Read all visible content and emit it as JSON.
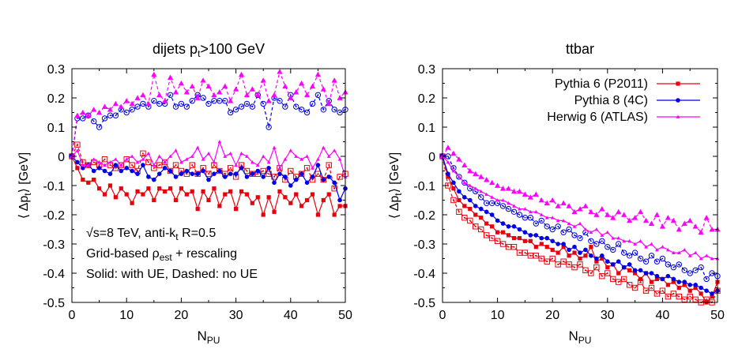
{
  "chart_data": [
    {
      "type": "line",
      "title": "dijets p",
      "title_sub": "t",
      "title_rest": ">100 GeV",
      "xlabel": "N",
      "xlabel_sub": "PU",
      "ylabel": "⟨ Δp",
      "ylabel_sub": "t",
      "ylabel_rest": "⟩ [GeV]",
      "xlim": [
        0,
        50
      ],
      "ylim": [
        -0.5,
        0.3
      ],
      "xticks": [
        "0",
        "10",
        "20",
        "30",
        "40",
        "50"
      ],
      "yticks": [
        "0.3",
        "0.2",
        "0.1",
        "0",
        "-0.1",
        "-0.2",
        "-0.3",
        "-0.4",
        "-0.5"
      ],
      "annotations": [
        {
          "text": "√s=8 TeV, anti-k",
          "sub": "t",
          "rest": " R=0.5"
        },
        {
          "text": "Grid-based ρ",
          "sub": "est",
          "rest": " + rescaling"
        },
        {
          "text": "Solid: with UE, Dashed: no UE",
          "sub": "",
          "rest": ""
        }
      ],
      "series": [
        {
          "name": "Pythia 6 (P2011)",
          "style": "solid",
          "marker": "filled-square",
          "color": "#e8000b",
          "values": [
            0,
            -0.04,
            -0.08,
            -0.09,
            -0.08,
            -0.11,
            -0.13,
            -0.1,
            -0.14,
            -0.11,
            -0.13,
            -0.16,
            -0.12,
            -0.13,
            -0.11,
            -0.15,
            -0.11,
            -0.12,
            -0.11,
            -0.15,
            -0.11,
            -0.13,
            -0.12,
            -0.18,
            -0.12,
            -0.15,
            -0.11,
            -0.17,
            -0.13,
            -0.12,
            -0.18,
            -0.12,
            -0.13,
            -0.16,
            -0.14,
            -0.2,
            -0.14,
            -0.19,
            -0.12,
            -0.14,
            -0.16,
            -0.13,
            -0.17,
            -0.15,
            -0.13,
            -0.2,
            -0.15,
            -0.13,
            -0.2,
            -0.17,
            -0.17
          ]
        },
        {
          "name": "Pythia 6 (P2011) no UE",
          "style": "dashed",
          "marker": "open-square",
          "color": "#e8000b",
          "values": [
            0,
            0.04,
            -0.02,
            -0.03,
            -0.02,
            -0.03,
            -0.01,
            -0.03,
            -0.04,
            -0.03,
            -0.01,
            -0.03,
            -0.05,
            0.01,
            -0.02,
            -0.04,
            -0.03,
            -0.02,
            -0.05,
            -0.03,
            -0.05,
            -0.06,
            -0.03,
            -0.06,
            -0.04,
            -0.06,
            -0.03,
            -0.05,
            -0.06,
            -0.04,
            -0.07,
            -0.03,
            -0.05,
            -0.06,
            -0.06,
            -0.05,
            -0.06,
            -0.07,
            -0.04,
            -0.08,
            -0.05,
            -0.07,
            -0.06,
            -0.04,
            -0.08,
            -0.06,
            -0.08,
            -0.03,
            -0.11,
            -0.07,
            -0.06
          ]
        },
        {
          "name": "Pythia 8 (4C)",
          "style": "solid",
          "marker": "filled-circle",
          "color": "#0000e6",
          "values": [
            0,
            -0.02,
            -0.04,
            -0.03,
            -0.05,
            -0.04,
            -0.05,
            -0.06,
            -0.03,
            -0.05,
            -0.04,
            -0.05,
            -0.06,
            -0.03,
            -0.07,
            -0.08,
            -0.06,
            -0.04,
            -0.05,
            -0.07,
            -0.06,
            -0.05,
            -0.06,
            -0.06,
            -0.05,
            -0.08,
            -0.06,
            -0.05,
            -0.07,
            -0.06,
            -0.06,
            -0.04,
            -0.07,
            -0.06,
            -0.05,
            -0.07,
            -0.04,
            -0.09,
            -0.06,
            -0.07,
            -0.1,
            -0.08,
            -0.06,
            -0.09,
            -0.07,
            -0.03,
            -0.08,
            -0.07,
            -0.09,
            -0.15,
            -0.11
          ]
        },
        {
          "name": "Pythia 8 (4C) no UE",
          "style": "dashed",
          "marker": "open-circle",
          "color": "#0000e6",
          "values": [
            0,
            0.13,
            0.13,
            0.14,
            0.12,
            0.1,
            0.13,
            0.14,
            0.14,
            0.16,
            0.15,
            0.16,
            0.17,
            0.18,
            0.17,
            0.19,
            0.18,
            0.18,
            0.21,
            0.17,
            0.18,
            0.17,
            0.19,
            0.21,
            0.2,
            0.18,
            0.19,
            0.19,
            0.19,
            0.15,
            0.16,
            0.17,
            0.18,
            0.17,
            0.21,
            0.18,
            0.1,
            0.2,
            0.19,
            0.17,
            0.21,
            0.17,
            0.16,
            0.15,
            0.18,
            0.21,
            0.16,
            0.19,
            0.16,
            0.15,
            0.16
          ]
        },
        {
          "name": "Herwig 6 (ATLAS)",
          "style": "solid",
          "marker": "small-triangle",
          "color": "#ff00ff",
          "values": [
            0,
            0.02,
            -0.03,
            -0.03,
            -0.01,
            -0.02,
            -0.03,
            -0.02,
            -0.01,
            -0.03,
            -0.01,
            0.0,
            -0.02,
            -0.01,
            0.01,
            -0.03,
            0.0,
            -0.02,
            0.0,
            0.02,
            -0.02,
            -0.01,
            0.0,
            0.03,
            -0.01,
            0.01,
            -0.02,
            0.05,
            0.0,
            0.01,
            -0.03,
            0.01,
            0.0,
            -0.02,
            -0.03,
            0.0,
            -0.02,
            0.03,
            -0.04,
            -0.01,
            0.02,
            0.0,
            -0.01,
            0.0,
            -0.04,
            -0.01,
            0.03,
            0.0,
            0.02,
            -0.01,
            -0.07
          ]
        },
        {
          "name": "Herwig 6 (ATLAS) no UE",
          "style": "dashed",
          "marker": "triangle",
          "color": "#ff00ff",
          "values": [
            0,
            0.14,
            0.15,
            0.14,
            0.16,
            0.15,
            0.17,
            0.16,
            0.18,
            0.17,
            0.19,
            0.18,
            0.2,
            0.21,
            0.18,
            0.28,
            0.21,
            0.19,
            0.27,
            0.22,
            0.25,
            0.22,
            0.24,
            0.2,
            0.26,
            0.24,
            0.21,
            0.22,
            0.24,
            0.19,
            0.23,
            0.28,
            0.21,
            0.23,
            0.21,
            0.26,
            0.19,
            0.21,
            0.29,
            0.24,
            0.2,
            0.22,
            0.25,
            0.21,
            0.24,
            0.28,
            0.23,
            0.18,
            0.26,
            0.2,
            0.22
          ]
        }
      ]
    },
    {
      "type": "line",
      "title": "ttbar",
      "xlabel": "N",
      "xlabel_sub": "PU",
      "ylabel": "⟨ Δp",
      "ylabel_sub": "t",
      "ylabel_rest": "⟩ [GeV]",
      "xlim": [
        0,
        50
      ],
      "ylim": [
        -0.5,
        0.3
      ],
      "xticks": [
        "0",
        "10",
        "20",
        "30",
        "40",
        "50"
      ],
      "yticks": [
        "0.3",
        "0.2",
        "0.1",
        "0",
        "-0.1",
        "-0.2",
        "-0.3",
        "-0.4",
        "-0.5"
      ],
      "legend_placement": "top-right",
      "legend": [
        {
          "label": "Pythia 6 (P2011)",
          "marker": "filled-square",
          "color": "#e8000b"
        },
        {
          "label": "Pythia 8 (4C)",
          "marker": "filled-circle",
          "color": "#0000e6"
        },
        {
          "label": "Herwig 6 (ATLAS)",
          "marker": "small-triangle",
          "color": "#ff00ff"
        }
      ],
      "series": [
        {
          "name": "Pythia 6 (P2011)",
          "style": "solid",
          "marker": "filled-square",
          "color": "#e8000b",
          "values": [
            0,
            -0.07,
            -0.11,
            -0.15,
            -0.17,
            -0.18,
            -0.2,
            -0.21,
            -0.23,
            -0.24,
            -0.26,
            -0.26,
            -0.27,
            -0.28,
            -0.28,
            -0.29,
            -0.29,
            -0.31,
            -0.3,
            -0.31,
            -0.32,
            -0.33,
            -0.31,
            -0.34,
            -0.33,
            -0.35,
            -0.34,
            -0.31,
            -0.36,
            -0.35,
            -0.38,
            -0.37,
            -0.4,
            -0.38,
            -0.39,
            -0.4,
            -0.42,
            -0.4,
            -0.43,
            -0.42,
            -0.42,
            -0.44,
            -0.43,
            -0.45,
            -0.44,
            -0.46,
            -0.45,
            -0.47,
            -0.5,
            -0.48,
            -0.43
          ]
        },
        {
          "name": "Pythia 6 (P2011) no UE",
          "style": "dashed",
          "marker": "open-square",
          "color": "#e8000b",
          "values": [
            0,
            -0.1,
            -0.15,
            -0.19,
            -0.21,
            -0.22,
            -0.24,
            -0.25,
            -0.27,
            -0.28,
            -0.29,
            -0.3,
            -0.31,
            -0.31,
            -0.33,
            -0.33,
            -0.34,
            -0.34,
            -0.35,
            -0.36,
            -0.35,
            -0.37,
            -0.36,
            -0.37,
            -0.38,
            -0.37,
            -0.39,
            -0.4,
            -0.38,
            -0.41,
            -0.4,
            -0.42,
            -0.43,
            -0.42,
            -0.44,
            -0.45,
            -0.43,
            -0.46,
            -0.45,
            -0.47,
            -0.46,
            -0.48,
            -0.47,
            -0.48,
            -0.49,
            -0.48,
            -0.49,
            -0.5,
            -0.49,
            -0.5,
            -0.46
          ]
        },
        {
          "name": "Pythia 8 (4C)",
          "style": "solid",
          "marker": "filled-circle",
          "color": "#0000e6",
          "values": [
            0,
            -0.06,
            -0.09,
            -0.12,
            -0.14,
            -0.15,
            -0.17,
            -0.18,
            -0.19,
            -0.2,
            -0.22,
            -0.23,
            -0.24,
            -0.24,
            -0.25,
            -0.26,
            -0.27,
            -0.27,
            -0.28,
            -0.28,
            -0.29,
            -0.3,
            -0.3,
            -0.32,
            -0.31,
            -0.33,
            -0.32,
            -0.34,
            -0.35,
            -0.34,
            -0.36,
            -0.37,
            -0.36,
            -0.38,
            -0.37,
            -0.39,
            -0.39,
            -0.4,
            -0.4,
            -0.41,
            -0.42,
            -0.41,
            -0.42,
            -0.43,
            -0.43,
            -0.44,
            -0.44,
            -0.45,
            -0.46,
            -0.47,
            -0.46
          ]
        },
        {
          "name": "Pythia 8 (4C) no UE",
          "style": "dashed",
          "marker": "open-circle",
          "color": "#0000e6",
          "values": [
            0,
            0.0,
            -0.04,
            -0.07,
            -0.09,
            -0.11,
            -0.12,
            -0.14,
            -0.16,
            -0.16,
            -0.16,
            -0.17,
            -0.18,
            -0.19,
            -0.2,
            -0.21,
            -0.21,
            -0.23,
            -0.22,
            -0.24,
            -0.25,
            -0.24,
            -0.26,
            -0.25,
            -0.27,
            -0.28,
            -0.26,
            -0.29,
            -0.3,
            -0.29,
            -0.31,
            -0.32,
            -0.3,
            -0.33,
            -0.34,
            -0.33,
            -0.35,
            -0.36,
            -0.34,
            -0.36,
            -0.35,
            -0.37,
            -0.38,
            -0.37,
            -0.39,
            -0.4,
            -0.39,
            -0.38,
            -0.42,
            -0.4,
            -0.41
          ]
        },
        {
          "name": "Herwig 6 (ATLAS)",
          "style": "solid",
          "marker": "small-triangle",
          "color": "#ff00ff",
          "values": [
            0,
            -0.02,
            -0.05,
            -0.07,
            -0.09,
            -0.1,
            -0.11,
            -0.12,
            -0.13,
            -0.14,
            -0.15,
            -0.15,
            -0.16,
            -0.17,
            -0.18,
            -0.18,
            -0.19,
            -0.19,
            -0.2,
            -0.21,
            -0.21,
            -0.22,
            -0.22,
            -0.23,
            -0.24,
            -0.23,
            -0.25,
            -0.26,
            -0.25,
            -0.27,
            -0.26,
            -0.28,
            -0.28,
            -0.29,
            -0.29,
            -0.3,
            -0.29,
            -0.31,
            -0.3,
            -0.32,
            -0.31,
            -0.32,
            -0.33,
            -0.33,
            -0.32,
            -0.34,
            -0.33,
            -0.35,
            -0.34,
            -0.35,
            -0.35
          ]
        },
        {
          "name": "Herwig 6 (ATLAS) no UE",
          "style": "dashed",
          "marker": "triangle",
          "color": "#ff00ff",
          "values": [
            0,
            0.03,
            0.01,
            -0.01,
            -0.03,
            -0.05,
            -0.06,
            -0.07,
            -0.08,
            -0.09,
            -0.1,
            -0.11,
            -0.11,
            -0.12,
            -0.12,
            -0.13,
            -0.14,
            -0.13,
            -0.15,
            -0.16,
            -0.15,
            -0.17,
            -0.16,
            -0.17,
            -0.19,
            -0.18,
            -0.17,
            -0.19,
            -0.2,
            -0.18,
            -0.2,
            -0.21,
            -0.19,
            -0.2,
            -0.22,
            -0.21,
            -0.19,
            -0.22,
            -0.23,
            -0.2,
            -0.24,
            -0.21,
            -0.22,
            -0.25,
            -0.23,
            -0.22,
            -0.24,
            -0.26,
            -0.21,
            -0.25,
            -0.25
          ]
        }
      ]
    }
  ]
}
